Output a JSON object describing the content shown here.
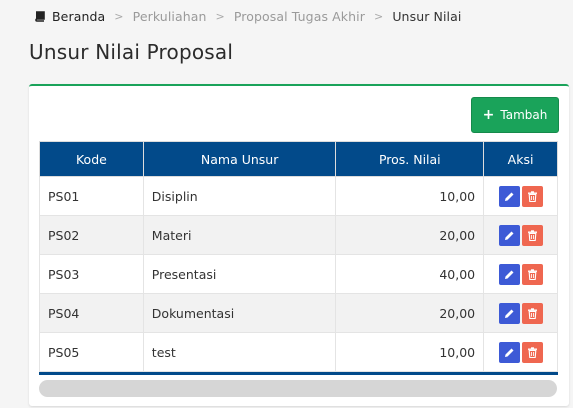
{
  "breadcrumb": {
    "home": "Beranda",
    "items": [
      "Perkuliahan",
      "Proposal Tugas Akhir"
    ],
    "current": "Unsur Nilai",
    "separator": ">"
  },
  "page": {
    "title": "Unsur Nilai Proposal"
  },
  "actions": {
    "add_label": "Tambah",
    "add_icon": "plus-icon"
  },
  "table": {
    "headers": [
      "Kode",
      "Nama Unsur",
      "Pros. Nilai",
      "Aksi"
    ],
    "rows": [
      [
        "PS01",
        "Disiplin",
        "10,00"
      ],
      [
        "PS02",
        "Materi",
        "20,00"
      ],
      [
        "PS03",
        "Presentasi",
        "40,00"
      ],
      [
        "PS04",
        "Dokumentasi",
        "20,00"
      ],
      [
        "PS05",
        "test",
        "10,00"
      ]
    ]
  },
  "colors": {
    "accent_green": "#1aa35a",
    "header_blue": "#024a8a",
    "edit_blue": "#3d5ad6",
    "delete_red": "#ef6750"
  }
}
